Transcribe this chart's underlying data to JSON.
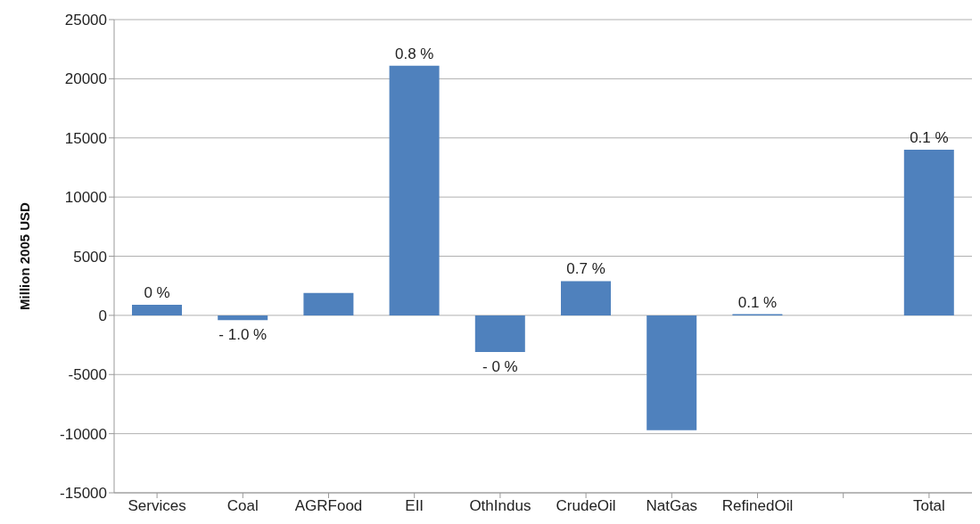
{
  "chart_data": {
    "type": "bar",
    "ylabel": "Million 2005 USD",
    "categories": [
      "Services",
      "Coal",
      "AGRFood",
      "EII",
      "OthIndus",
      "CrudeOil",
      "NatGas",
      "RefinedOil",
      null,
      "Total"
    ],
    "values": [
      900,
      -400,
      1900,
      21100,
      -3100,
      2900,
      -9700,
      100,
      null,
      14000
    ],
    "annotations": [
      {
        "text": "0 %",
        "x": "Services",
        "y": 900
      },
      {
        "text": "- 1.0 %",
        "x": "Coal",
        "y": -400
      },
      {
        "text": "0.8 %",
        "x": "EII",
        "y": 21100
      },
      {
        "text": "- 0 %",
        "x": "OthIndus",
        "y": -3100
      },
      {
        "text": "0.7 %",
        "x": "CrudeOil",
        "y": 2900
      },
      {
        "text": "0.1 %",
        "x": "RefinedOil",
        "y": 100
      },
      {
        "text": "0.1 %",
        "x": "Total",
        "y": 14000
      }
    ],
    "color": "#4f81bd",
    "ylim": [
      -15000,
      25000
    ],
    "yticks": [
      -15000,
      -10000,
      -5000,
      0,
      5000,
      10000,
      15000,
      20000,
      25000
    ],
    "grid": "y"
  }
}
